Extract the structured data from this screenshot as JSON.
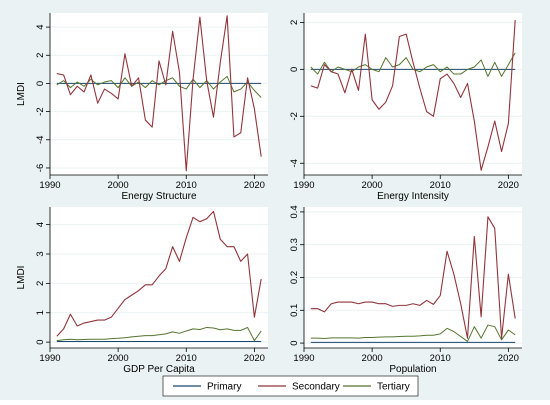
{
  "figure": {
    "y_axis_label": "LMDI"
  },
  "colors": {
    "primary": "#1a476f",
    "secondary": "#90353b",
    "tertiary": "#55752f",
    "background": "#eaf2f3",
    "panel": "#ffffff",
    "grid": "#eaf2f3"
  },
  "legend": {
    "items": [
      {
        "key": "primary",
        "label": "Primary"
      },
      {
        "key": "secondary",
        "label": "Secondary"
      },
      {
        "key": "tertiary",
        "label": "Tertiary"
      }
    ]
  },
  "chart_data": [
    {
      "type": "line",
      "title": "",
      "xlabel": "Energy Structure",
      "ylabel": "LMDI",
      "xlim": [
        1990,
        2022
      ],
      "ylim": [
        -6.5,
        5
      ],
      "xticks": [
        1990,
        2000,
        2010,
        2020
      ],
      "yticks": [
        -6,
        -4,
        -2,
        0,
        2,
        4
      ],
      "x": [
        1991,
        1992,
        1993,
        1994,
        1995,
        1996,
        1997,
        1998,
        1999,
        2000,
        2001,
        2002,
        2003,
        2004,
        2005,
        2006,
        2007,
        2008,
        2009,
        2010,
        2011,
        2012,
        2013,
        2014,
        2015,
        2016,
        2017,
        2018,
        2019,
        2020,
        2021
      ],
      "series": [
        {
          "key": "primary",
          "name": "Primary",
          "values": [
            0,
            0,
            0,
            0,
            0,
            0,
            0,
            0,
            0,
            0,
            0,
            0,
            0,
            0,
            0,
            0,
            0,
            0,
            0,
            0,
            0,
            0,
            0,
            0,
            0,
            0,
            0,
            0,
            0,
            0,
            0
          ]
        },
        {
          "key": "secondary",
          "name": "Secondary",
          "values": [
            0.7,
            0.6,
            -0.8,
            -0.2,
            -0.6,
            0.6,
            -1.4,
            -0.4,
            -0.7,
            -1.1,
            2.1,
            -0.2,
            0.4,
            -2.6,
            -3.1,
            1.6,
            -0.1,
            3.7,
            0.8,
            -6.2,
            0.3,
            4.7,
            0.2,
            -2.4,
            1.5,
            4.8,
            -3.8,
            -3.5,
            0.4,
            -1.8,
            -5.2
          ]
        },
        {
          "key": "tertiary",
          "name": "Tertiary",
          "values": [
            -0.1,
            0.2,
            -0.3,
            0.1,
            -0.2,
            0.3,
            -0.1,
            0.1,
            0.2,
            -0.3,
            0.4,
            -0.2,
            0.1,
            -0.3,
            0.2,
            -0.1,
            0.2,
            0.4,
            -0.2,
            -0.4,
            0.3,
            -0.3,
            0.2,
            -0.4,
            0.1,
            0.5,
            -0.6,
            -0.4,
            0.1,
            -0.5,
            -1.0
          ]
        }
      ]
    },
    {
      "type": "line",
      "title": "",
      "xlabel": "Energy Intensity",
      "ylabel": "",
      "xlim": [
        1990,
        2022
      ],
      "ylim": [
        -4.5,
        2.4
      ],
      "xticks": [
        1990,
        2000,
        2010,
        2020
      ],
      "yticks": [
        -4,
        -2,
        0,
        2
      ],
      "x": [
        1991,
        1992,
        1993,
        1994,
        1995,
        1996,
        1997,
        1998,
        1999,
        2000,
        2001,
        2002,
        2003,
        2004,
        2005,
        2006,
        2007,
        2008,
        2009,
        2010,
        2011,
        2012,
        2013,
        2014,
        2015,
        2016,
        2017,
        2018,
        2019,
        2020,
        2021
      ],
      "series": [
        {
          "key": "primary",
          "name": "Primary",
          "values": [
            0,
            0,
            0,
            0,
            0,
            0,
            0,
            0,
            0,
            0,
            0,
            0,
            0,
            0,
            0,
            0,
            0,
            0,
            0,
            0,
            0,
            0,
            0,
            0,
            0,
            0,
            0,
            0,
            0,
            0,
            0
          ]
        },
        {
          "key": "secondary",
          "name": "Secondary",
          "values": [
            -0.7,
            -0.8,
            0.2,
            -0.1,
            -0.2,
            -1.0,
            0.0,
            -0.9,
            1.5,
            -1.3,
            -1.7,
            -1.4,
            -0.7,
            1.4,
            1.5,
            0.3,
            -0.8,
            -1.8,
            -2.0,
            -0.4,
            -0.2,
            -0.6,
            -1.2,
            -0.6,
            -2.2,
            -4.3,
            -3.3,
            -2.2,
            -3.5,
            -2.3,
            2.1
          ]
        },
        {
          "key": "tertiary",
          "name": "Tertiary",
          "values": [
            0.1,
            -0.2,
            0.3,
            -0.1,
            0.1,
            0.0,
            -0.1,
            0.1,
            0.2,
            0.0,
            -0.1,
            0.5,
            0.1,
            0.2,
            0.5,
            0.0,
            -0.1,
            0.1,
            0.2,
            -0.1,
            0.1,
            -0.2,
            -0.2,
            0.0,
            0.1,
            0.4,
            -0.3,
            0.3,
            -0.3,
            0.2,
            0.7
          ]
        }
      ]
    },
    {
      "type": "line",
      "title": "",
      "xlabel": "GDP Per Capita",
      "ylabel": "LMDI",
      "xlim": [
        1990,
        2022
      ],
      "ylim": [
        -0.2,
        4.6
      ],
      "xticks": [
        1990,
        2000,
        2010,
        2020
      ],
      "yticks": [
        0,
        1,
        2,
        3,
        4
      ],
      "x": [
        1991,
        1992,
        1993,
        1994,
        1995,
        1996,
        1997,
        1998,
        1999,
        2000,
        2001,
        2002,
        2003,
        2004,
        2005,
        2006,
        2007,
        2008,
        2009,
        2010,
        2011,
        2012,
        2013,
        2014,
        2015,
        2016,
        2017,
        2018,
        2019,
        2020,
        2021
      ],
      "series": [
        {
          "key": "primary",
          "name": "Primary",
          "values": [
            0.02,
            0.02,
            0.02,
            0.02,
            0.02,
            0.02,
            0.02,
            0.02,
            0.02,
            0.02,
            0.02,
            0.02,
            0.02,
            0.02,
            0.02,
            0.02,
            0.02,
            0.02,
            0.02,
            0.02,
            0.02,
            0.02,
            0.02,
            0.02,
            0.02,
            0.02,
            0.02,
            0.02,
            0.02,
            0.02,
            0.02
          ]
        },
        {
          "key": "secondary",
          "name": "Secondary",
          "values": [
            0.2,
            0.45,
            0.95,
            0.55,
            0.65,
            0.7,
            0.75,
            0.75,
            0.85,
            1.15,
            1.45,
            1.6,
            1.75,
            1.95,
            1.95,
            2.25,
            2.5,
            3.25,
            2.75,
            3.55,
            4.25,
            4.1,
            4.2,
            4.45,
            3.5,
            3.25,
            3.25,
            2.75,
            3.0,
            0.85,
            2.15
          ]
        },
        {
          "key": "tertiary",
          "name": "Tertiary",
          "values": [
            0.05,
            0.08,
            0.1,
            0.08,
            0.09,
            0.1,
            0.1,
            0.1,
            0.12,
            0.13,
            0.15,
            0.18,
            0.2,
            0.22,
            0.22,
            0.25,
            0.28,
            0.35,
            0.3,
            0.38,
            0.45,
            0.43,
            0.5,
            0.48,
            0.42,
            0.45,
            0.4,
            0.4,
            0.5,
            0.05,
            0.38
          ]
        }
      ]
    },
    {
      "type": "line",
      "title": "",
      "xlabel": "Population",
      "ylabel": "",
      "xlim": [
        1990,
        2022
      ],
      "ylim": [
        -0.015,
        0.415
      ],
      "xticks": [
        1990,
        2000,
        2010,
        2020
      ],
      "yticks": [
        0,
        0.1,
        0.2,
        0.3,
        0.4
      ],
      "x": [
        1991,
        1992,
        1993,
        1994,
        1995,
        1996,
        1997,
        1998,
        1999,
        2000,
        2001,
        2002,
        2003,
        2004,
        2005,
        2006,
        2007,
        2008,
        2009,
        2010,
        2011,
        2012,
        2013,
        2014,
        2015,
        2016,
        2017,
        2018,
        2019,
        2020,
        2021
      ],
      "series": [
        {
          "key": "primary",
          "name": "Primary",
          "values": [
            0.002,
            0.002,
            0.002,
            0.002,
            0.002,
            0.002,
            0.002,
            0.002,
            0.002,
            0.002,
            0.002,
            0.002,
            0.002,
            0.002,
            0.002,
            0.002,
            0.002,
            0.002,
            0.002,
            0.002,
            0.002,
            0.002,
            0.002,
            0.002,
            0.002,
            0.002,
            0.002,
            0.002,
            0.002,
            0.002,
            0.002
          ]
        },
        {
          "key": "secondary",
          "name": "Secondary",
          "values": [
            0.105,
            0.105,
            0.095,
            0.12,
            0.125,
            0.125,
            0.125,
            0.12,
            0.125,
            0.125,
            0.12,
            0.12,
            0.112,
            0.115,
            0.115,
            0.12,
            0.115,
            0.13,
            0.118,
            0.145,
            0.28,
            0.21,
            0.12,
            0.015,
            0.325,
            0.08,
            0.385,
            0.35,
            0.015,
            0.21,
            0.075
          ]
        },
        {
          "key": "tertiary",
          "name": "Tertiary",
          "values": [
            0.015,
            0.015,
            0.014,
            0.016,
            0.016,
            0.016,
            0.016,
            0.015,
            0.017,
            0.017,
            0.018,
            0.019,
            0.019,
            0.02,
            0.021,
            0.021,
            0.022,
            0.024,
            0.024,
            0.028,
            0.045,
            0.035,
            0.02,
            0.005,
            0.05,
            0.015,
            0.055,
            0.05,
            0.01,
            0.04,
            0.025
          ]
        }
      ]
    }
  ]
}
